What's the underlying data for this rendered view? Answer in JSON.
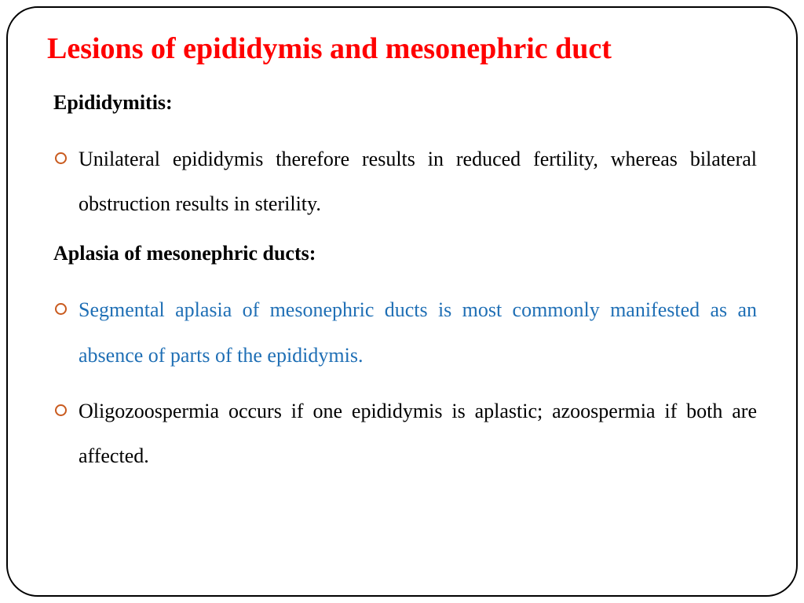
{
  "title": {
    "text": "Lesions of epididymis and mesonephric duct",
    "color": "#ff0000"
  },
  "sections": [
    {
      "heading": "Epididymitis:",
      "heading_color": "#000000",
      "bullets": [
        {
          "text": "Unilateral epididymis therefore results in reduced fertility, whereas bilateral obstruction results in sterility.",
          "color": "#000000"
        }
      ]
    },
    {
      "heading": "Aplasia of mesonephric ducts:",
      "heading_color": "#000000",
      "bullets": [
        {
          "text": "Segmental aplasia of mesonephric ducts is most commonly manifested as an absence of parts of the epididymis.",
          "color": "#1f6fb5"
        },
        {
          "text": "Oligozoospermia occurs if one epididymis is aplastic; azoospermia if both are affected.",
          "color": "#000000"
        }
      ]
    }
  ],
  "frame": {
    "border_color": "#000000",
    "border_radius": 40,
    "background": "#ffffff"
  },
  "bullet_marker_color": "#c95a1e"
}
